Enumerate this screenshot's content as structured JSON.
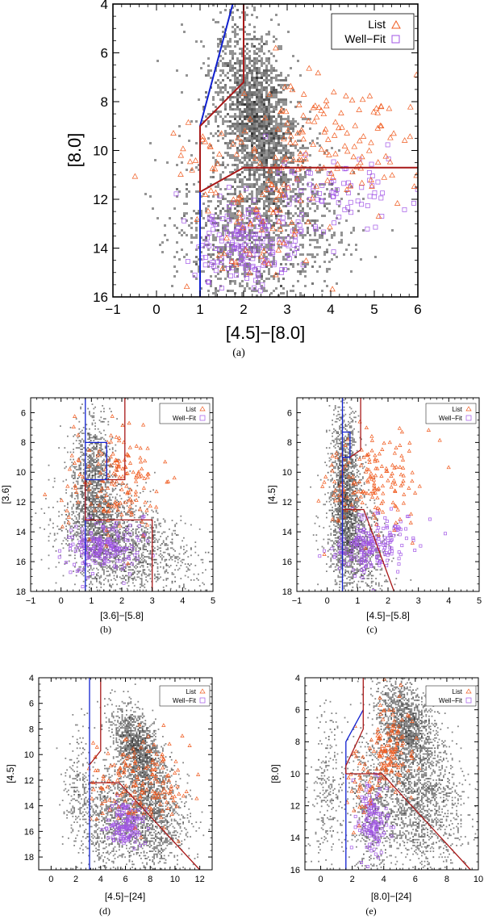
{
  "colors": {
    "list": "#f05a1e",
    "wellfit": "#a155e6",
    "blue_line": "#1020d0",
    "red_line": "#a81818",
    "cloud": "#3a3a3a",
    "axis": "#000000"
  },
  "chart_data": [
    {
      "id": "a",
      "type": "scatter",
      "panel_label": "(a)",
      "xlabel": "[4.5]−[8.0]",
      "ylabel": "[8.0]",
      "xlim": [
        -1,
        6
      ],
      "ylim": [
        16,
        4
      ],
      "y_inverted": true,
      "xticks": [
        -1,
        0,
        1,
        2,
        3,
        4,
        5,
        6
      ],
      "xtick_labels": [
        "−1",
        "0",
        "1",
        "2",
        "3",
        "4",
        "5",
        "6"
      ],
      "yticks": [
        4,
        6,
        8,
        10,
        12,
        14,
        16
      ],
      "ytick_labels": [
        "4",
        "6",
        "8",
        "10",
        "12",
        "14",
        "16"
      ],
      "legend": {
        "position": "top-right",
        "entries": [
          {
            "label": "List",
            "marker": "triangle"
          },
          {
            "label": "Well−Fit",
            "marker": "square"
          }
        ]
      },
      "lines": [
        {
          "name": "blue-cut",
          "color": "blue",
          "points": [
            [
              1,
              16
            ],
            [
              1,
              9
            ],
            [
              1.75,
              4
            ]
          ]
        },
        {
          "name": "red-cut-upper",
          "color": "red",
          "points": [
            [
              1,
              9
            ],
            [
              2,
              7.2
            ],
            [
              2,
              4
            ]
          ]
        },
        {
          "name": "red-cut-lower",
          "color": "red",
          "points": [
            [
              1,
              11.7
            ],
            [
              2,
              10.7
            ],
            [
              6,
              10.7
            ]
          ]
        },
        {
          "name": "red-cut-vertical",
          "color": "red",
          "points": [
            [
              1,
              9
            ],
            [
              1,
              11.7
            ]
          ]
        }
      ],
      "clouds": [
        {
          "cx": 2.3,
          "cy": 8.5,
          "sx": 0.4,
          "sy": 1.8,
          "n": 1700,
          "rot": 0.2
        },
        {
          "cx": 2.0,
          "cy": 13.5,
          "sx": 0.8,
          "sy": 1.6,
          "n": 900,
          "rot": 0.1
        },
        {
          "cx": 2.8,
          "cy": 11.0,
          "sx": 0.7,
          "sy": 2.2,
          "n": 700,
          "rot": 0.5
        }
      ],
      "list_points": {
        "seed": 11,
        "groups": [
          {
            "cx": 4.0,
            "cy": 9.5,
            "sx": 0.9,
            "sy": 1.3,
            "n": 130
          },
          {
            "cx": 2.3,
            "cy": 13.0,
            "sx": 0.6,
            "sy": 1.5,
            "n": 70
          },
          {
            "cx": 1.0,
            "cy": 10.0,
            "sx": 0.6,
            "sy": 1.4,
            "n": 25
          }
        ]
      },
      "wellfit_points": {
        "seed": 23,
        "groups": [
          {
            "cx": 2.0,
            "cy": 13.8,
            "sx": 0.6,
            "sy": 0.9,
            "n": 170
          },
          {
            "cx": 3.9,
            "cy": 11.8,
            "sx": 0.9,
            "sy": 1.0,
            "n": 90
          }
        ]
      }
    },
    {
      "id": "b",
      "type": "scatter",
      "panel_label": "(b)",
      "xlabel": "[3.6]−[5.8]",
      "ylabel": "[3.6]",
      "xlim": [
        -1,
        5
      ],
      "ylim": [
        18,
        5
      ],
      "y_inverted": true,
      "xticks": [
        -1,
        0,
        1,
        2,
        3,
        4,
        5
      ],
      "xtick_labels": [
        "−1",
        "0",
        "1",
        "2",
        "3",
        "4",
        "5"
      ],
      "yticks": [
        6,
        8,
        10,
        12,
        14,
        16,
        18
      ],
      "ytick_labels": [
        "6",
        "8",
        "10",
        "12",
        "14",
        "16",
        "18"
      ],
      "legend": {
        "position": "top-right",
        "entries": [
          {
            "label": "List",
            "marker": "triangle"
          },
          {
            "label": "Well−Fit",
            "marker": "square"
          }
        ]
      },
      "lines": [
        {
          "name": "blue-cut",
          "color": "blue",
          "points": [
            [
              0.8,
              18
            ],
            [
              0.8,
              8
            ],
            [
              1.5,
              8
            ],
            [
              1.5,
              10.5
            ],
            [
              0.8,
              10.5
            ]
          ]
        },
        {
          "name": "blue-cut-top",
          "color": "blue",
          "points": [
            [
              0.8,
              8
            ],
            [
              0.8,
              5
            ]
          ]
        },
        {
          "name": "red-cut-upper",
          "color": "red",
          "points": [
            [
              1.5,
              10.5
            ],
            [
              2.1,
              10.5
            ],
            [
              2.1,
              5
            ]
          ]
        },
        {
          "name": "red-cut-box",
          "color": "red",
          "points": [
            [
              0.8,
              10.5
            ],
            [
              0.8,
              13.2
            ],
            [
              3.0,
              13.2
            ],
            [
              3.0,
              18
            ]
          ]
        }
      ],
      "clouds": [
        {
          "cx": 1.1,
          "cy": 11.5,
          "sx": 0.35,
          "sy": 2.6,
          "n": 1500,
          "rot": 0.05
        },
        {
          "cx": 1.7,
          "cy": 15.0,
          "sx": 0.9,
          "sy": 1.8,
          "n": 1200,
          "rot": 0.4
        },
        {
          "cx": 2.8,
          "cy": 14.5,
          "sx": 0.8,
          "sy": 2.0,
          "n": 500,
          "rot": 0.8
        }
      ],
      "list_points": {
        "seed": 31,
        "groups": [
          {
            "cx": 2.0,
            "cy": 10.5,
            "sx": 0.6,
            "sy": 1.8,
            "n": 140
          },
          {
            "cx": 0.6,
            "cy": 11.0,
            "sx": 0.5,
            "sy": 1.5,
            "n": 25
          }
        ]
      },
      "wellfit_points": {
        "seed": 37,
        "groups": [
          {
            "cx": 1.3,
            "cy": 15.2,
            "sx": 0.5,
            "sy": 0.8,
            "n": 160
          },
          {
            "cx": 2.0,
            "cy": 14.5,
            "sx": 0.5,
            "sy": 0.8,
            "n": 40
          }
        ]
      }
    },
    {
      "id": "c",
      "type": "scatter",
      "panel_label": "(c)",
      "xlabel": "[4.5]−[5.8]",
      "ylabel": "[4.5]",
      "xlim": [
        -1,
        5
      ],
      "ylim": [
        18,
        5
      ],
      "y_inverted": true,
      "xticks": [
        -1,
        0,
        1,
        2,
        3,
        4,
        5
      ],
      "xtick_labels": [
        "−1",
        "0",
        "1",
        "2",
        "3",
        "4",
        "5"
      ],
      "yticks": [
        6,
        8,
        10,
        12,
        14,
        16,
        18
      ],
      "ytick_labels": [
        "6",
        "8",
        "10",
        "12",
        "14",
        "16",
        "18"
      ],
      "legend": {
        "position": "top-right",
        "entries": [
          {
            "label": "List",
            "marker": "triangle"
          },
          {
            "label": "Well−Fit",
            "marker": "square"
          }
        ]
      },
      "lines": [
        {
          "name": "blue-cut",
          "color": "blue",
          "points": [
            [
              0.5,
              18
            ],
            [
              0.5,
              7.3
            ],
            [
              0.75,
              7.3
            ],
            [
              0.75,
              9.0
            ],
            [
              0.5,
              9.0
            ]
          ]
        },
        {
          "name": "blue-cut-top",
          "color": "blue",
          "points": [
            [
              0.5,
              7.3
            ],
            [
              0.5,
              5
            ]
          ]
        },
        {
          "name": "red-cut-upper",
          "color": "red",
          "points": [
            [
              0.75,
              9.0
            ],
            [
              1.1,
              8.5
            ],
            [
              1.1,
              5
            ]
          ]
        },
        {
          "name": "red-cut-lower",
          "color": "red",
          "points": [
            [
              0.5,
              12.5
            ],
            [
              1.2,
              12.5
            ],
            [
              2.2,
              18
            ]
          ]
        }
      ],
      "clouds": [
        {
          "cx": 0.6,
          "cy": 11.5,
          "sx": 0.25,
          "sy": 2.8,
          "n": 1600,
          "rot": 0.0
        },
        {
          "cx": 1.0,
          "cy": 15.0,
          "sx": 0.5,
          "sy": 1.8,
          "n": 900,
          "rot": 0.2
        }
      ],
      "list_points": {
        "seed": 41,
        "groups": [
          {
            "cx": 1.7,
            "cy": 10.5,
            "sx": 0.7,
            "sy": 1.8,
            "n": 150
          },
          {
            "cx": 0.3,
            "cy": 11.5,
            "sx": 0.3,
            "sy": 1.4,
            "n": 20
          }
        ]
      },
      "wellfit_points": {
        "seed": 43,
        "groups": [
          {
            "cx": 1.2,
            "cy": 15.0,
            "sx": 0.5,
            "sy": 0.9,
            "n": 160
          },
          {
            "cx": 2.2,
            "cy": 14.0,
            "sx": 0.5,
            "sy": 0.8,
            "n": 50
          }
        ]
      }
    },
    {
      "id": "d",
      "type": "scatter",
      "panel_label": "(d)",
      "xlabel": "[4.5]−[24]",
      "ylabel": "[4.5]",
      "xlim": [
        -1,
        13
      ],
      "ylim": [
        19,
        4
      ],
      "y_inverted": true,
      "xticks": [
        0,
        2,
        4,
        6,
        8,
        10,
        12
      ],
      "xtick_labels": [
        "0",
        "2",
        "4",
        "6",
        "8",
        "10",
        "12"
      ],
      "yticks": [
        4,
        6,
        8,
        10,
        12,
        14,
        16,
        18
      ],
      "ytick_labels": [
        "4",
        "6",
        "8",
        "10",
        "12",
        "14",
        "16",
        "18"
      ],
      "legend": {
        "position": "top-right",
        "entries": [
          {
            "label": "List",
            "marker": "triangle"
          },
          {
            "label": "Well−Fit",
            "marker": "square"
          }
        ]
      },
      "lines": [
        {
          "name": "blue-cut",
          "color": "blue",
          "points": [
            [
              3.1,
              19
            ],
            [
              3.1,
              4
            ]
          ]
        },
        {
          "name": "red-cut-upper",
          "color": "red",
          "points": [
            [
              3.1,
              10.8
            ],
            [
              4.0,
              9.7
            ],
            [
              4.0,
              4
            ]
          ]
        },
        {
          "name": "red-cut-lower",
          "color": "red",
          "points": [
            [
              3.1,
              12.2
            ],
            [
              5.5,
              12.2
            ],
            [
              12.0,
              19
            ]
          ]
        }
      ],
      "clouds": [
        {
          "cx": 7.0,
          "cy": 9.5,
          "sx": 0.9,
          "sy": 1.6,
          "n": 1300,
          "rot": 0.6
        },
        {
          "cx": 7.8,
          "cy": 14.5,
          "sx": 1.5,
          "sy": 2.2,
          "n": 1600,
          "rot": 0.3
        },
        {
          "cx": 4.5,
          "cy": 15.5,
          "sx": 1.0,
          "sy": 2.0,
          "n": 500,
          "rot": 0.1
        },
        {
          "cx": 2.2,
          "cy": 13.0,
          "sx": 0.6,
          "sy": 3.0,
          "n": 250,
          "rot": 0.0
        }
      ],
      "list_points": {
        "seed": 51,
        "groups": [
          {
            "cx": 7.5,
            "cy": 12.0,
            "sx": 1.5,
            "sy": 1.8,
            "n": 150
          },
          {
            "cx": 4.0,
            "cy": 12.0,
            "sx": 0.8,
            "sy": 1.5,
            "n": 25
          }
        ]
      },
      "wellfit_points": {
        "seed": 53,
        "groups": [
          {
            "cx": 6.0,
            "cy": 15.5,
            "sx": 0.7,
            "sy": 0.8,
            "n": 140
          }
        ]
      }
    },
    {
      "id": "e",
      "type": "scatter",
      "panel_label": "(e)",
      "xlabel": "[8.0]−[24]",
      "ylabel": "[8.0]",
      "xlim": [
        -1,
        10
      ],
      "ylim": [
        16,
        4
      ],
      "y_inverted": true,
      "xticks": [
        0,
        2,
        4,
        6,
        8,
        10
      ],
      "xtick_labels": [
        "0",
        "2",
        "4",
        "6",
        "8",
        "10"
      ],
      "yticks": [
        4,
        6,
        8,
        10,
        12,
        14,
        16
      ],
      "ytick_labels": [
        "4",
        "6",
        "8",
        "10",
        "12",
        "14",
        "16"
      ],
      "legend": {
        "position": "top-right",
        "entries": [
          {
            "label": "List",
            "marker": "triangle"
          },
          {
            "label": "Well−Fit",
            "marker": "square"
          }
        ]
      },
      "lines": [
        {
          "name": "blue-cut",
          "color": "blue",
          "points": [
            [
              1.6,
              16
            ],
            [
              1.6,
              8
            ],
            [
              2.7,
              6.0
            ]
          ]
        },
        {
          "name": "red-cut-upper",
          "color": "red",
          "points": [
            [
              1.6,
              9.5
            ],
            [
              2.7,
              7.2
            ],
            [
              2.7,
              4
            ]
          ]
        },
        {
          "name": "red-cut-lower",
          "color": "red",
          "points": [
            [
              1.6,
              10.0
            ],
            [
              3.9,
              10.0
            ],
            [
              9.5,
              16
            ]
          ]
        },
        {
          "name": "red-cut-vertical",
          "color": "red",
          "points": [
            [
              1.6,
              9.5
            ],
            [
              1.6,
              10.0
            ]
          ]
        }
      ],
      "clouds": [
        {
          "cx": 5.5,
          "cy": 7.0,
          "sx": 0.9,
          "sy": 1.4,
          "n": 1300,
          "rot": 0.6
        },
        {
          "cx": 6.0,
          "cy": 11.5,
          "sx": 1.5,
          "sy": 2.2,
          "n": 1700,
          "rot": 0.3
        },
        {
          "cx": 3.2,
          "cy": 12.5,
          "sx": 0.8,
          "sy": 2.2,
          "n": 500,
          "rot": 0.1
        },
        {
          "cx": 0.5,
          "cy": 11.0,
          "sx": 0.5,
          "sy": 2.5,
          "n": 250,
          "rot": 0.0
        }
      ],
      "list_points": {
        "seed": 61,
        "groups": [
          {
            "cx": 4.3,
            "cy": 8.5,
            "sx": 0.8,
            "sy": 1.3,
            "n": 130
          },
          {
            "cx": 2.5,
            "cy": 10.5,
            "sx": 0.5,
            "sy": 1.3,
            "n": 35
          }
        ]
      },
      "wellfit_points": {
        "seed": 67,
        "groups": [
          {
            "cx": 3.3,
            "cy": 13.0,
            "sx": 0.5,
            "sy": 1.1,
            "n": 130
          }
        ]
      }
    }
  ]
}
